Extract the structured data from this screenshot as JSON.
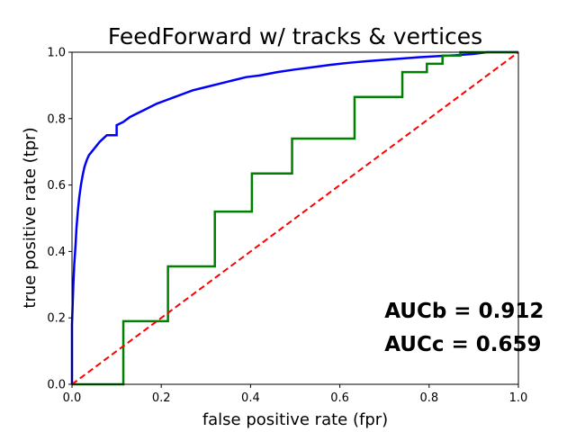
{
  "chart_data": {
    "type": "line",
    "title": "FeedForward w/ tracks & vertices",
    "xlabel": "false positive rate (fpr)",
    "ylabel": "true positive rate (tpr)",
    "xlim": [
      0,
      1
    ],
    "ylim": [
      0,
      1
    ],
    "x_ticks": [
      "0.0",
      "0.2",
      "0.4",
      "0.6",
      "0.8",
      "1.0"
    ],
    "y_ticks": [
      "0.0",
      "0.2",
      "0.4",
      "0.6",
      "0.8",
      "1.0"
    ],
    "grid": false,
    "legend": "none",
    "series": [
      {
        "color": "#0000ff",
        "style": "solid",
        "step": true,
        "x": [
          0.0,
          0.0,
          0.003,
          0.005,
          0.008,
          0.01,
          0.013,
          0.016,
          0.02,
          0.024,
          0.028,
          0.033,
          0.038,
          0.044,
          0.05,
          0.056,
          0.062,
          0.07,
          0.078,
          0.088,
          0.1,
          0.1,
          0.115,
          0.13,
          0.145,
          0.16,
          0.175,
          0.19,
          0.21,
          0.23,
          0.25,
          0.27,
          0.3,
          0.33,
          0.36,
          0.39,
          0.42,
          0.46,
          0.5,
          0.54,
          0.58,
          0.62,
          0.66,
          0.7,
          0.74,
          0.78,
          0.82,
          0.86,
          0.9,
          0.93,
          1.0
        ],
        "y": [
          0.0,
          0.18,
          0.3,
          0.36,
          0.42,
          0.47,
          0.52,
          0.56,
          0.6,
          0.63,
          0.655,
          0.675,
          0.69,
          0.7,
          0.71,
          0.72,
          0.73,
          0.74,
          0.75,
          0.75,
          0.75,
          0.78,
          0.79,
          0.805,
          0.815,
          0.825,
          0.835,
          0.845,
          0.855,
          0.865,
          0.875,
          0.885,
          0.895,
          0.905,
          0.915,
          0.925,
          0.93,
          0.94,
          0.948,
          0.955,
          0.962,
          0.968,
          0.973,
          0.977,
          0.981,
          0.985,
          0.988,
          0.991,
          0.995,
          1.0,
          1.0
        ]
      },
      {
        "color": "#008000",
        "style": "solid",
        "step": true,
        "x": [
          0.0,
          0.115,
          0.115,
          0.215,
          0.215,
          0.32,
          0.32,
          0.403,
          0.403,
          0.493,
          0.493,
          0.633,
          0.633,
          0.74,
          0.74,
          0.795,
          0.795,
          0.83,
          0.83,
          0.87,
          0.87,
          0.93,
          1.0
        ],
        "y": [
          0.0,
          0.0,
          0.19,
          0.19,
          0.355,
          0.355,
          0.52,
          0.52,
          0.635,
          0.635,
          0.74,
          0.74,
          0.865,
          0.865,
          0.94,
          0.94,
          0.965,
          0.965,
          0.99,
          0.99,
          1.0,
          1.0,
          1.0
        ]
      },
      {
        "color": "#ff0000",
        "style": "dashed",
        "step": false,
        "x": [
          0,
          1
        ],
        "y": [
          0,
          1
        ]
      }
    ],
    "annotations": [
      {
        "text": "AUCb = 0.912",
        "x": 0.7,
        "y": 0.2
      },
      {
        "text": "AUCc = 0.659",
        "x": 0.7,
        "y": 0.1
      }
    ]
  }
}
